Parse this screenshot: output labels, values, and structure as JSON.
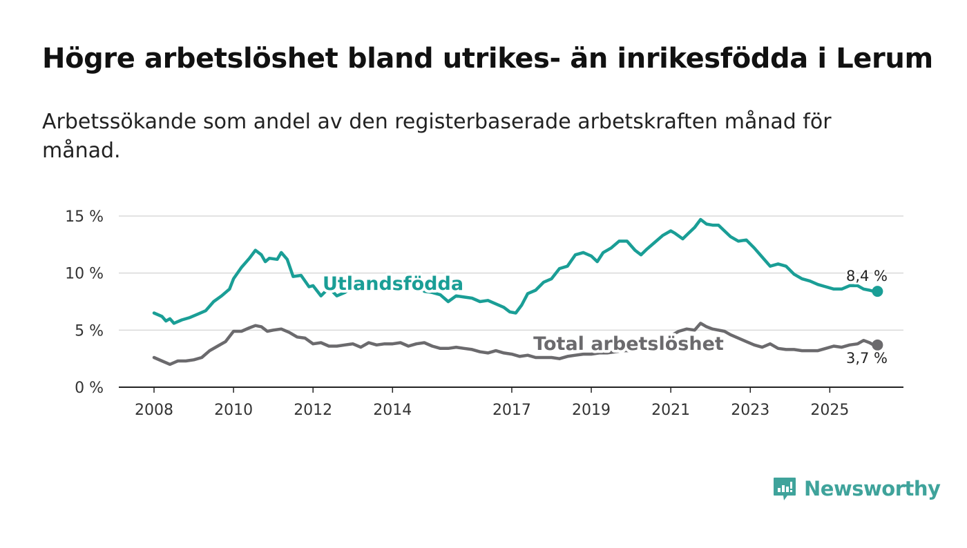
{
  "title": "Högre arbetslöshet bland utrikes- än inrikesfödda i Lerum",
  "subtitle": "Arbetssökande som andel av den registerbaserade arbetskraften månad för månad.",
  "brand": {
    "name": "Newsworthy",
    "color": "#3fa39b"
  },
  "chart_data": {
    "type": "line",
    "x_range": [
      2008,
      2026.2
    ],
    "ylim": [
      0,
      15
    ],
    "y_ticks": [
      {
        "value": 0,
        "label": "0 %"
      },
      {
        "value": 5,
        "label": "5 %"
      },
      {
        "value": 10,
        "label": "10 %"
      },
      {
        "value": 15,
        "label": "15 %"
      }
    ],
    "x_ticks": [
      {
        "value": 2008,
        "label": "2008"
      },
      {
        "value": 2010,
        "label": "2010"
      },
      {
        "value": 2012,
        "label": "2012"
      },
      {
        "value": 2014,
        "label": "2014"
      },
      {
        "value": 2017,
        "label": "2017"
      },
      {
        "value": 2019,
        "label": "2019"
      },
      {
        "value": 2021,
        "label": "2021"
      },
      {
        "value": 2023,
        "label": "2023"
      },
      {
        "value": 2025,
        "label": "2025"
      }
    ],
    "grid": true,
    "series": [
      {
        "name": "Utlandsfödda",
        "color": "#1a9e96",
        "end_label": "8,4 %",
        "points": [
          [
            2008.0,
            6.5
          ],
          [
            2008.2,
            6.2
          ],
          [
            2008.3,
            5.8
          ],
          [
            2008.4,
            6.0
          ],
          [
            2008.5,
            5.6
          ],
          [
            2008.7,
            5.9
          ],
          [
            2008.9,
            6.1
          ],
          [
            2009.1,
            6.4
          ],
          [
            2009.3,
            6.7
          ],
          [
            2009.5,
            7.5
          ],
          [
            2009.7,
            8.0
          ],
          [
            2009.9,
            8.6
          ],
          [
            2010.0,
            9.5
          ],
          [
            2010.2,
            10.5
          ],
          [
            2010.4,
            11.3
          ],
          [
            2010.55,
            12.0
          ],
          [
            2010.7,
            11.6
          ],
          [
            2010.8,
            11.0
          ],
          [
            2010.9,
            11.3
          ],
          [
            2011.1,
            11.2
          ],
          [
            2011.2,
            11.8
          ],
          [
            2011.35,
            11.2
          ],
          [
            2011.5,
            9.7
          ],
          [
            2011.7,
            9.8
          ],
          [
            2011.9,
            8.8
          ],
          [
            2012.0,
            8.9
          ],
          [
            2012.2,
            8.0
          ],
          [
            2012.4,
            8.7
          ],
          [
            2012.6,
            8.0
          ],
          [
            2012.8,
            8.3
          ],
          [
            2013.0,
            8.8
          ],
          [
            2013.3,
            8.7
          ],
          [
            2013.6,
            9.0
          ],
          [
            2013.9,
            9.4
          ],
          [
            2014.1,
            9.3
          ],
          [
            2014.4,
            9.2
          ],
          [
            2014.6,
            9.0
          ],
          [
            2014.8,
            8.4
          ],
          [
            2015.0,
            8.3
          ],
          [
            2015.2,
            8.1
          ],
          [
            2015.4,
            7.5
          ],
          [
            2015.6,
            8.0
          ],
          [
            2015.8,
            7.9
          ],
          [
            2016.0,
            7.8
          ],
          [
            2016.2,
            7.5
          ],
          [
            2016.4,
            7.6
          ],
          [
            2016.6,
            7.3
          ],
          [
            2016.8,
            7.0
          ],
          [
            2016.95,
            6.6
          ],
          [
            2017.1,
            6.5
          ],
          [
            2017.25,
            7.2
          ],
          [
            2017.4,
            8.2
          ],
          [
            2017.6,
            8.5
          ],
          [
            2017.8,
            9.2
          ],
          [
            2018.0,
            9.5
          ],
          [
            2018.2,
            10.4
          ],
          [
            2018.4,
            10.6
          ],
          [
            2018.6,
            11.6
          ],
          [
            2018.8,
            11.8
          ],
          [
            2019.0,
            11.5
          ],
          [
            2019.15,
            11.0
          ],
          [
            2019.3,
            11.8
          ],
          [
            2019.5,
            12.2
          ],
          [
            2019.7,
            12.8
          ],
          [
            2019.9,
            12.8
          ],
          [
            2020.1,
            12.0
          ],
          [
            2020.25,
            11.6
          ],
          [
            2020.4,
            12.1
          ],
          [
            2020.6,
            12.7
          ],
          [
            2020.8,
            13.3
          ],
          [
            2021.0,
            13.7
          ],
          [
            2021.1,
            13.5
          ],
          [
            2021.3,
            13.0
          ],
          [
            2021.45,
            13.5
          ],
          [
            2021.6,
            14.0
          ],
          [
            2021.75,
            14.7
          ],
          [
            2021.9,
            14.3
          ],
          [
            2022.05,
            14.2
          ],
          [
            2022.2,
            14.2
          ],
          [
            2022.35,
            13.7
          ],
          [
            2022.5,
            13.2
          ],
          [
            2022.7,
            12.8
          ],
          [
            2022.9,
            12.9
          ],
          [
            2023.1,
            12.2
          ],
          [
            2023.3,
            11.4
          ],
          [
            2023.5,
            10.6
          ],
          [
            2023.7,
            10.8
          ],
          [
            2023.9,
            10.6
          ],
          [
            2024.1,
            9.9
          ],
          [
            2024.3,
            9.5
          ],
          [
            2024.5,
            9.3
          ],
          [
            2024.7,
            9.0
          ],
          [
            2024.9,
            8.8
          ],
          [
            2025.1,
            8.6
          ],
          [
            2025.3,
            8.6
          ],
          [
            2025.5,
            8.9
          ],
          [
            2025.7,
            8.9
          ],
          [
            2025.85,
            8.6
          ],
          [
            2026.0,
            8.5
          ],
          [
            2026.1,
            8.4
          ],
          [
            2026.2,
            8.4
          ]
        ]
      },
      {
        "name": "Total arbetslöshet",
        "color": "#6b6a6d",
        "end_label": "3,7 %",
        "points": [
          [
            2008.0,
            2.6
          ],
          [
            2008.2,
            2.3
          ],
          [
            2008.4,
            2.0
          ],
          [
            2008.6,
            2.3
          ],
          [
            2008.8,
            2.3
          ],
          [
            2009.0,
            2.4
          ],
          [
            2009.2,
            2.6
          ],
          [
            2009.4,
            3.2
          ],
          [
            2009.6,
            3.6
          ],
          [
            2009.8,
            4.0
          ],
          [
            2010.0,
            4.9
          ],
          [
            2010.2,
            4.9
          ],
          [
            2010.4,
            5.2
          ],
          [
            2010.55,
            5.4
          ],
          [
            2010.7,
            5.3
          ],
          [
            2010.85,
            4.9
          ],
          [
            2011.0,
            5.0
          ],
          [
            2011.2,
            5.1
          ],
          [
            2011.4,
            4.8
          ],
          [
            2011.6,
            4.4
          ],
          [
            2011.8,
            4.3
          ],
          [
            2012.0,
            3.8
          ],
          [
            2012.2,
            3.9
          ],
          [
            2012.4,
            3.6
          ],
          [
            2012.6,
            3.6
          ],
          [
            2012.8,
            3.7
          ],
          [
            2013.0,
            3.8
          ],
          [
            2013.2,
            3.5
          ],
          [
            2013.4,
            3.9
          ],
          [
            2013.6,
            3.7
          ],
          [
            2013.8,
            3.8
          ],
          [
            2014.0,
            3.8
          ],
          [
            2014.2,
            3.9
          ],
          [
            2014.4,
            3.6
          ],
          [
            2014.6,
            3.8
          ],
          [
            2014.8,
            3.9
          ],
          [
            2015.0,
            3.6
          ],
          [
            2015.2,
            3.4
          ],
          [
            2015.4,
            3.4
          ],
          [
            2015.6,
            3.5
          ],
          [
            2015.8,
            3.4
          ],
          [
            2016.0,
            3.3
          ],
          [
            2016.2,
            3.1
          ],
          [
            2016.4,
            3.0
          ],
          [
            2016.6,
            3.2
          ],
          [
            2016.8,
            3.0
          ],
          [
            2017.0,
            2.9
          ],
          [
            2017.2,
            2.7
          ],
          [
            2017.4,
            2.8
          ],
          [
            2017.6,
            2.6
          ],
          [
            2017.8,
            2.6
          ],
          [
            2018.0,
            2.6
          ],
          [
            2018.2,
            2.5
          ],
          [
            2018.4,
            2.7
          ],
          [
            2018.6,
            2.8
          ],
          [
            2018.8,
            2.9
          ],
          [
            2019.0,
            2.9
          ],
          [
            2019.2,
            3.0
          ],
          [
            2019.4,
            3.0
          ],
          [
            2019.6,
            3.1
          ],
          [
            2019.8,
            3.2
          ],
          [
            2020.0,
            3.2
          ],
          [
            2020.2,
            3.3
          ],
          [
            2020.4,
            3.6
          ],
          [
            2020.6,
            3.9
          ],
          [
            2020.8,
            4.2
          ],
          [
            2021.0,
            4.5
          ],
          [
            2021.2,
            4.9
          ],
          [
            2021.4,
            5.1
          ],
          [
            2021.6,
            5.0
          ],
          [
            2021.75,
            5.6
          ],
          [
            2021.9,
            5.3
          ],
          [
            2022.05,
            5.1
          ],
          [
            2022.2,
            5.0
          ],
          [
            2022.35,
            4.9
          ],
          [
            2022.5,
            4.6
          ],
          [
            2022.7,
            4.3
          ],
          [
            2022.9,
            4.0
          ],
          [
            2023.1,
            3.7
          ],
          [
            2023.3,
            3.5
          ],
          [
            2023.5,
            3.8
          ],
          [
            2023.7,
            3.4
          ],
          [
            2023.9,
            3.3
          ],
          [
            2024.1,
            3.3
          ],
          [
            2024.3,
            3.2
          ],
          [
            2024.5,
            3.2
          ],
          [
            2024.7,
            3.2
          ],
          [
            2024.9,
            3.4
          ],
          [
            2025.1,
            3.6
          ],
          [
            2025.3,
            3.5
          ],
          [
            2025.5,
            3.7
          ],
          [
            2025.7,
            3.8
          ],
          [
            2025.85,
            4.1
          ],
          [
            2026.0,
            3.9
          ],
          [
            2026.1,
            3.7
          ],
          [
            2026.2,
            3.7
          ]
        ]
      }
    ]
  }
}
